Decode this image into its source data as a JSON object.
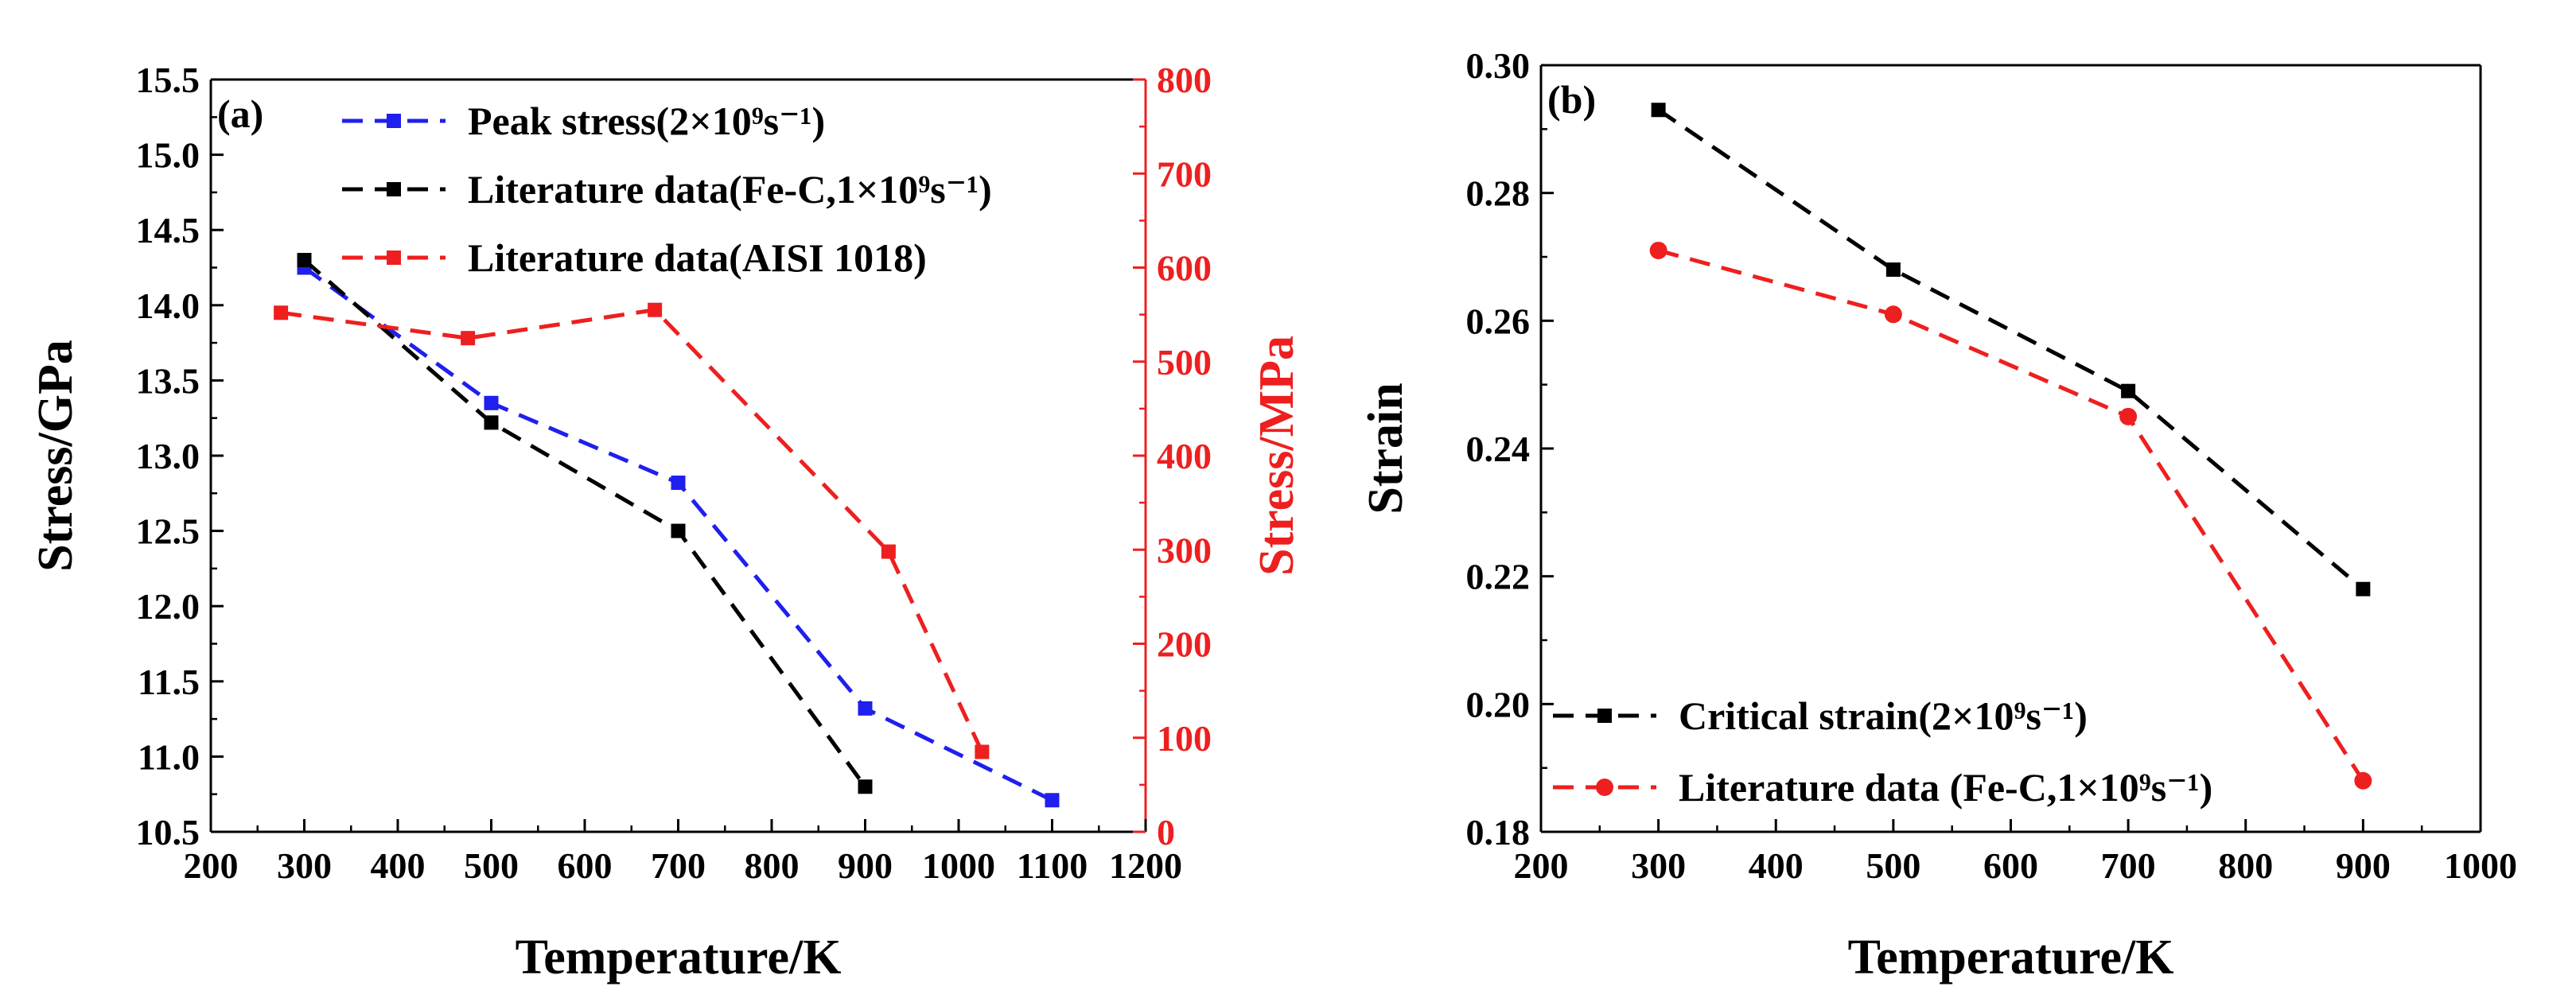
{
  "chart_data": [
    {
      "type": "line",
      "panel_label": "(a)",
      "xlabel": "Temperature/K",
      "ylabel": "Stress/GPa",
      "ylabel_right": "Stress/MPa",
      "xlim": [
        200,
        1200
      ],
      "ylim": [
        10.5,
        15.5
      ],
      "ylim_right": [
        0,
        800
      ],
      "x_ticks": [
        "200",
        "300",
        "400",
        "500",
        "600",
        "700",
        "800",
        "900",
        "1000",
        "1100",
        "1200"
      ],
      "y_ticks": [
        "10.5",
        "11.0",
        "11.5",
        "12.0",
        "12.5",
        "13.0",
        "13.5",
        "14.0",
        "14.5",
        "15.0",
        "15.5"
      ],
      "y_right_ticks": [
        "0",
        "100",
        "200",
        "300",
        "400",
        "500",
        "600",
        "700",
        "800"
      ],
      "legend_position": "top-center",
      "series": [
        {
          "name": "Peak stress(2×10⁹s⁻¹)",
          "color": "#1f1fee",
          "marker": "square",
          "axis": "left",
          "x": [
            300,
            500,
            700,
            900,
            1100
          ],
          "values": [
            14.25,
            13.35,
            12.82,
            11.32,
            10.71
          ]
        },
        {
          "name": "Literature data(Fe-C,1×10⁹s⁻¹)",
          "color": "#000000",
          "marker": "square",
          "axis": "left",
          "x": [
            300,
            500,
            700,
            900
          ],
          "values": [
            14.3,
            13.22,
            12.5,
            10.8
          ]
        },
        {
          "name": "Literature data(AISI 1018)",
          "color": "#ee1f1f",
          "marker": "square",
          "axis": "right",
          "x": [
            275,
            475,
            675,
            925,
            1025
          ],
          "values": [
            552,
            525,
            555,
            298,
            85
          ]
        }
      ]
    },
    {
      "type": "line",
      "panel_label": "(b)",
      "xlabel": "Temperature/K",
      "ylabel": "Strain",
      "xlim": [
        200,
        1000
      ],
      "ylim": [
        0.18,
        0.3
      ],
      "x_ticks": [
        "200",
        "300",
        "400",
        "500",
        "600",
        "700",
        "800",
        "900",
        "1000"
      ],
      "y_ticks": [
        "0.18",
        "0.20",
        "0.22",
        "0.24",
        "0.26",
        "0.28",
        "0.30"
      ],
      "legend_position": "bottom-left",
      "series": [
        {
          "name": "Critical strain(2×10⁹s⁻¹)",
          "color": "#000000",
          "marker": "square",
          "x": [
            300,
            500,
            700,
            900
          ],
          "values": [
            0.293,
            0.268,
            0.249,
            0.218
          ]
        },
        {
          "name": "Literature data (Fe-C,1×10⁹s⁻¹)",
          "color": "#ee1f1f",
          "marker": "circle",
          "x": [
            300,
            500,
            700,
            900
          ],
          "values": [
            0.271,
            0.261,
            0.245,
            0.188
          ]
        }
      ]
    }
  ]
}
